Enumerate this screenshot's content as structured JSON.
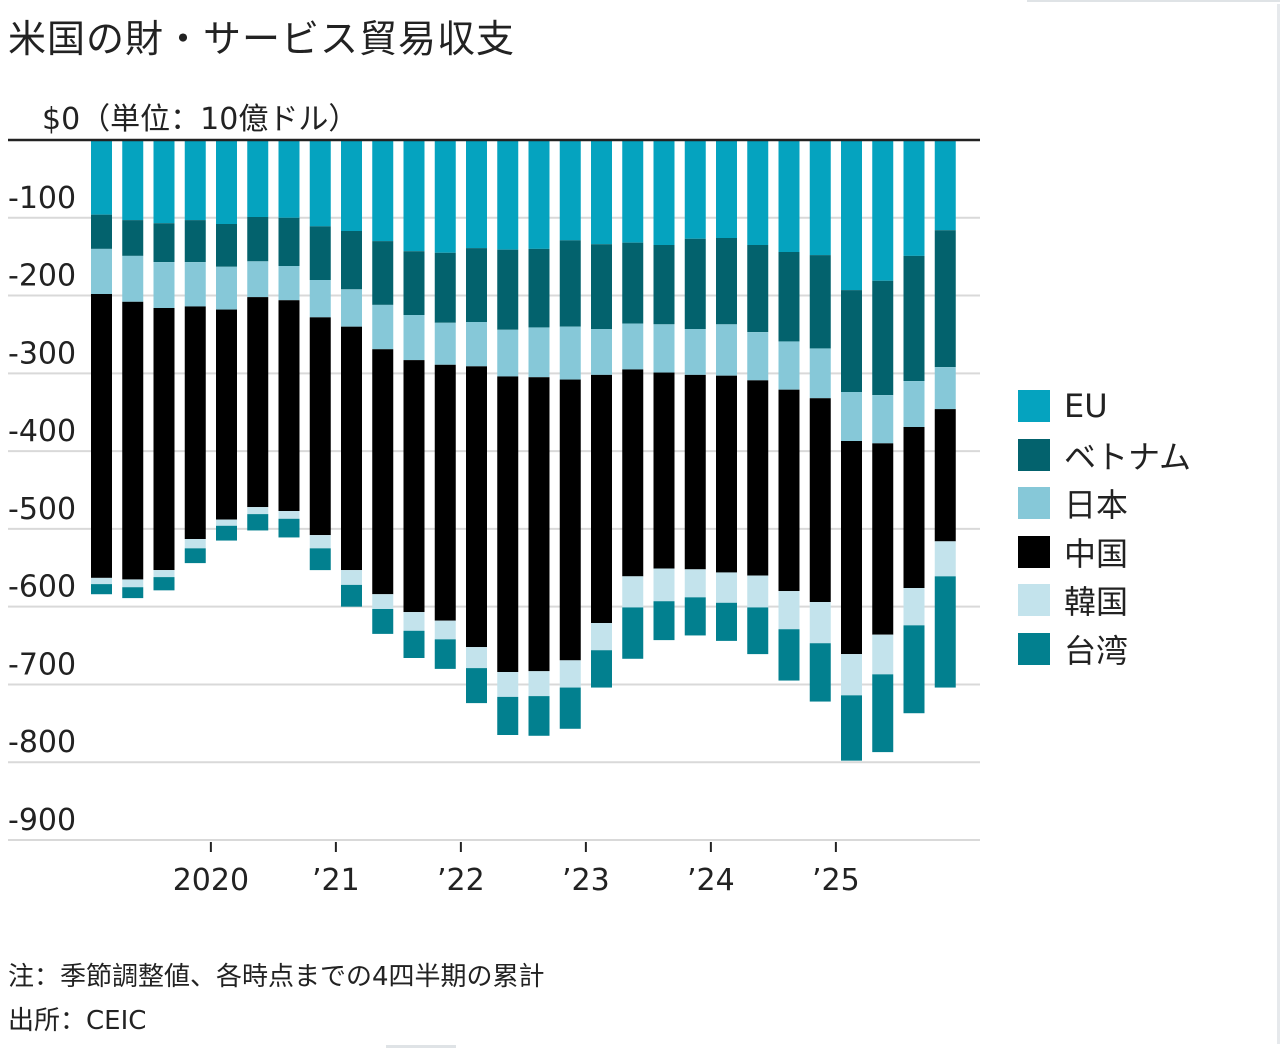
{
  "title": "米国の財・サービス貿易収支",
  "unit_label": "$0（単位：10億ドル）",
  "note": "注：季節調整値、各時点までの4四半期の累計",
  "source": "出所：CEIC",
  "chart_data": {
    "type": "bar",
    "stacked": true,
    "title": "米国の財・サービス貿易収支",
    "ylabel": "単位：10億ドル",
    "xlabel": "",
    "ylim": [
      -900,
      0
    ],
    "yticks": [
      0,
      -100,
      -200,
      -300,
      -400,
      -500,
      -600,
      -700,
      -800,
      -900
    ],
    "ytick_labels": [
      "$0",
      "-100",
      "-200",
      "-300",
      "-400",
      "-500",
      "-600",
      "-700",
      "-800",
      "-900"
    ],
    "grid": true,
    "legend_position": "right",
    "x_tick_labels": [
      {
        "label": "2020",
        "before_bar_index": 4
      },
      {
        "label": "’21",
        "before_bar_index": 8
      },
      {
        "label": "’22",
        "before_bar_index": 12
      },
      {
        "label": "’23",
        "before_bar_index": 16
      },
      {
        "label": "’24",
        "before_bar_index": 20
      },
      {
        "label": "’25",
        "before_bar_index": 24
      }
    ],
    "categories": [
      "2019Q1",
      "2019Q2",
      "2019Q3",
      "2019Q4",
      "2020Q1",
      "2020Q2",
      "2020Q3",
      "2020Q4",
      "2021Q1",
      "2021Q2",
      "2021Q3",
      "2021Q4",
      "2022Q1",
      "2022Q2",
      "2022Q3",
      "2022Q4",
      "2023Q1",
      "2023Q2",
      "2023Q3",
      "2023Q4",
      "2024Q1",
      "2024Q2",
      "2024Q3",
      "2024Q4",
      "2025Q1",
      "2025Q2",
      "2025Q3",
      "2025Q4"
    ],
    "series": [
      {
        "name": "EU",
        "color": "#05a3bf",
        "values": [
          -96,
          -103,
          -107,
          -103,
          -108,
          -99,
          -100,
          -111,
          -117,
          -130,
          -143,
          -145,
          -139,
          -141,
          -140,
          -129,
          -134,
          -132,
          -135,
          -127,
          -126,
          -135,
          -144,
          -148,
          -193,
          -181,
          -149,
          -116
        ]
      },
      {
        "name": "ベトナム",
        "color": "#03626d",
        "values": [
          -44,
          -46,
          -50,
          -54,
          -55,
          -57,
          -62,
          -69,
          -75,
          -82,
          -82,
          -90,
          -95,
          -103,
          -101,
          -111,
          -109,
          -104,
          -102,
          -116,
          -111,
          -112,
          -115,
          -120,
          -131,
          -147,
          -161,
          -176
        ]
      },
      {
        "name": "日本",
        "color": "#86c8d8",
        "values": [
          -58,
          -59,
          -59,
          -57,
          -55,
          -46,
          -44,
          -48,
          -48,
          -57,
          -58,
          -54,
          -57,
          -60,
          -64,
          -68,
          -59,
          -59,
          -62,
          -59,
          -66,
          -62,
          -62,
          -64,
          -63,
          -62,
          -59,
          -54
        ]
      },
      {
        "name": "中国",
        "color": "#000000",
        "values": [
          -365,
          -357,
          -337,
          -299,
          -270,
          -270,
          -271,
          -280,
          -313,
          -315,
          -324,
          -329,
          -361,
          -380,
          -378,
          -361,
          -319,
          -266,
          -252,
          -250,
          -253,
          -251,
          -259,
          -262,
          -274,
          -246,
          -207,
          -170
        ]
      },
      {
        "name": "韓国",
        "color": "#c3e3ec",
        "values": [
          -8,
          -10,
          -9,
          -12,
          -8,
          -9,
          -10,
          -17,
          -19,
          -19,
          -24,
          -24,
          -27,
          -32,
          -32,
          -35,
          -35,
          -40,
          -42,
          -36,
          -39,
          -41,
          -49,
          -53,
          -53,
          -51,
          -48,
          -45
        ]
      },
      {
        "name": "台湾",
        "color": "#02808f",
        "values": [
          -13,
          -14,
          -17,
          -19,
          -19,
          -21,
          -24,
          -28,
          -28,
          -32,
          -35,
          -38,
          -45,
          -49,
          -51,
          -53,
          -48,
          -66,
          -50,
          -49,
          -49,
          -60,
          -66,
          -75,
          -84,
          -100,
          -113,
          -143
        ]
      }
    ]
  }
}
